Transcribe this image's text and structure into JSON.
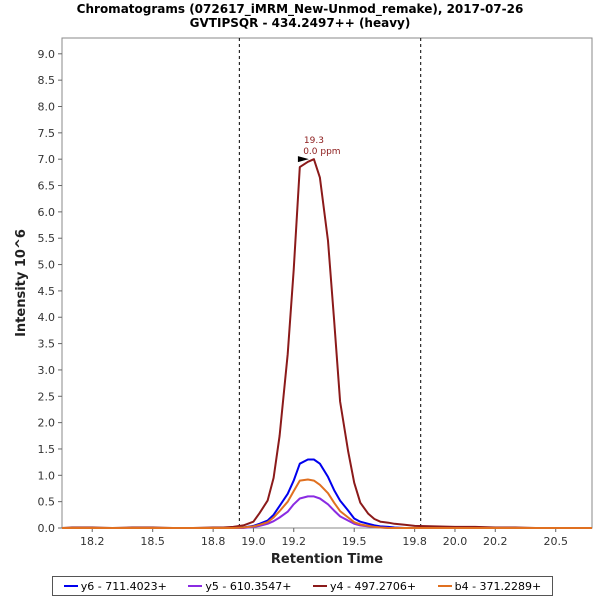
{
  "chart_data": {
    "type": "line",
    "title": "Chromatograms (072617_iMRM_New-Unmod_remake), 2017-07-26",
    "subtitle": "GVTIPSQR - 434.2497++ (heavy)",
    "xlabel": "Retention Time",
    "ylabel": "Intensity 10^6",
    "xlim": [
      18.05,
      20.68
    ],
    "ylim": [
      0,
      9.3
    ],
    "x_ticks": [
      "18.2",
      "18.5",
      "18.8",
      "19.0",
      "19.2",
      "19.5",
      "19.8",
      "20.0",
      "20.2",
      "20.5"
    ],
    "x_tick_values": [
      18.2,
      18.5,
      18.8,
      19.0,
      19.2,
      19.5,
      19.8,
      20.0,
      20.2,
      20.5
    ],
    "y_ticks": [
      "0.0",
      "0.5",
      "1.0",
      "1.5",
      "2.0",
      "2.5",
      "3.0",
      "3.5",
      "4.0",
      "4.5",
      "5.0",
      "5.5",
      "6.0",
      "6.5",
      "7.0",
      "7.5",
      "8.0",
      "8.5",
      "9.0"
    ],
    "y_tick_values": [
      0,
      0.5,
      1,
      1.5,
      2,
      2.5,
      3,
      3.5,
      4,
      4.5,
      5,
      5.5,
      6,
      6.5,
      7,
      7.5,
      8,
      8.5,
      9
    ],
    "integration_bounds": [
      18.93,
      19.83
    ],
    "x": [
      18.05,
      18.1,
      18.2,
      18.3,
      18.4,
      18.5,
      18.6,
      18.7,
      18.8,
      18.85,
      18.9,
      18.95,
      19.0,
      19.03,
      19.07,
      19.1,
      19.13,
      19.17,
      19.2,
      19.23,
      19.27,
      19.3,
      19.33,
      19.37,
      19.4,
      19.43,
      19.47,
      19.5,
      19.53,
      19.57,
      19.6,
      19.63,
      19.67,
      19.7,
      19.75,
      19.8,
      19.9,
      20.0,
      20.1,
      20.2,
      20.3,
      20.4,
      20.5,
      20.6,
      20.68
    ],
    "series": [
      {
        "name": "y6 - 711.4023+",
        "color": "#0000ee",
        "values": [
          0,
          0,
          0,
          0,
          0,
          0,
          0,
          0,
          0,
          0,
          0,
          0.01,
          0.04,
          0.08,
          0.14,
          0.25,
          0.42,
          0.65,
          0.9,
          1.22,
          1.3,
          1.3,
          1.22,
          0.97,
          0.72,
          0.52,
          0.33,
          0.18,
          0.12,
          0.08,
          0.05,
          0.03,
          0.02,
          0.01,
          0,
          0,
          0,
          0,
          0,
          0,
          0,
          0,
          0,
          0,
          0
        ]
      },
      {
        "name": "y5 - 610.3547+",
        "color": "#8a2be2",
        "values": [
          0,
          0,
          0,
          0,
          0,
          0,
          0,
          0,
          0,
          0,
          0,
          0,
          0.02,
          0.04,
          0.08,
          0.13,
          0.2,
          0.31,
          0.45,
          0.56,
          0.6,
          0.6,
          0.56,
          0.45,
          0.33,
          0.22,
          0.14,
          0.08,
          0.05,
          0.03,
          0.02,
          0.01,
          0,
          0,
          0,
          0,
          0,
          0,
          0,
          0,
          0,
          0,
          0,
          0,
          0
        ]
      },
      {
        "name": "y4 - 497.2706+",
        "color": "#8b1a1a",
        "values": [
          0,
          0.01,
          0.01,
          0,
          0.01,
          0.01,
          0,
          0,
          0.01,
          0.01,
          0.02,
          0.05,
          0.12,
          0.28,
          0.52,
          0.95,
          1.75,
          3.3,
          4.9,
          6.85,
          6.95,
          7.0,
          6.65,
          5.45,
          3.95,
          2.4,
          1.45,
          0.86,
          0.48,
          0.27,
          0.17,
          0.12,
          0.1,
          0.08,
          0.06,
          0.04,
          0.03,
          0.02,
          0.02,
          0.01,
          0.01,
          0,
          0,
          0,
          0
        ]
      },
      {
        "name": "b4 - 371.2289+",
        "color": "#e07020",
        "values": [
          0,
          0,
          0,
          0,
          0,
          0,
          0,
          0,
          0,
          0,
          0,
          0.01,
          0.03,
          0.06,
          0.11,
          0.2,
          0.32,
          0.5,
          0.7,
          0.9,
          0.92,
          0.9,
          0.82,
          0.66,
          0.48,
          0.32,
          0.2,
          0.11,
          0.07,
          0.04,
          0.02,
          0.01,
          0,
          0,
          0,
          0,
          0,
          0,
          0,
          0,
          0,
          0,
          0,
          0,
          0
        ]
      }
    ],
    "peak_annotation": {
      "rt": "19.3",
      "ppm": "0.0 ppm",
      "x": 19.3,
      "y": 7.0
    },
    "grid": false,
    "legend_position": "bottom"
  }
}
